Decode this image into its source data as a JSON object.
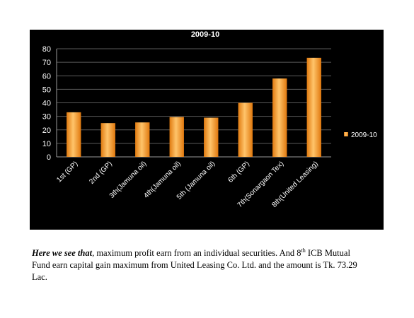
{
  "chart_data": {
    "type": "bar",
    "title": "2009-10",
    "categories": [
      "1st (GP)",
      "2nd (GP)",
      "3th(Jamuna oil)",
      "4th(Jamuna oil)",
      "5th (Jamuna oil)",
      "6th (GP)",
      "7th(Sonargaon Tex)",
      "8th(United Leasing)"
    ],
    "series": [
      {
        "name": "2009-10",
        "values": [
          33,
          25,
          25.5,
          29.5,
          29,
          40,
          58,
          73.29
        ],
        "color": "#f39a2e"
      }
    ],
    "ylim": [
      0,
      80
    ],
    "yticks": [
      "0",
      "10",
      "20",
      "30",
      "40",
      "50",
      "60",
      "70",
      "80"
    ],
    "grid": true,
    "legend_position": "right"
  },
  "caption": {
    "lead": "Here we see that",
    "part1": ", maximum profit earn from an individual securities. And 8",
    "sup": "th",
    "part2": " ICB Mutual Fund earn capital gain maximum from United Leasing Co. Ltd. and the amount is Tk. 73.29 Lac."
  }
}
